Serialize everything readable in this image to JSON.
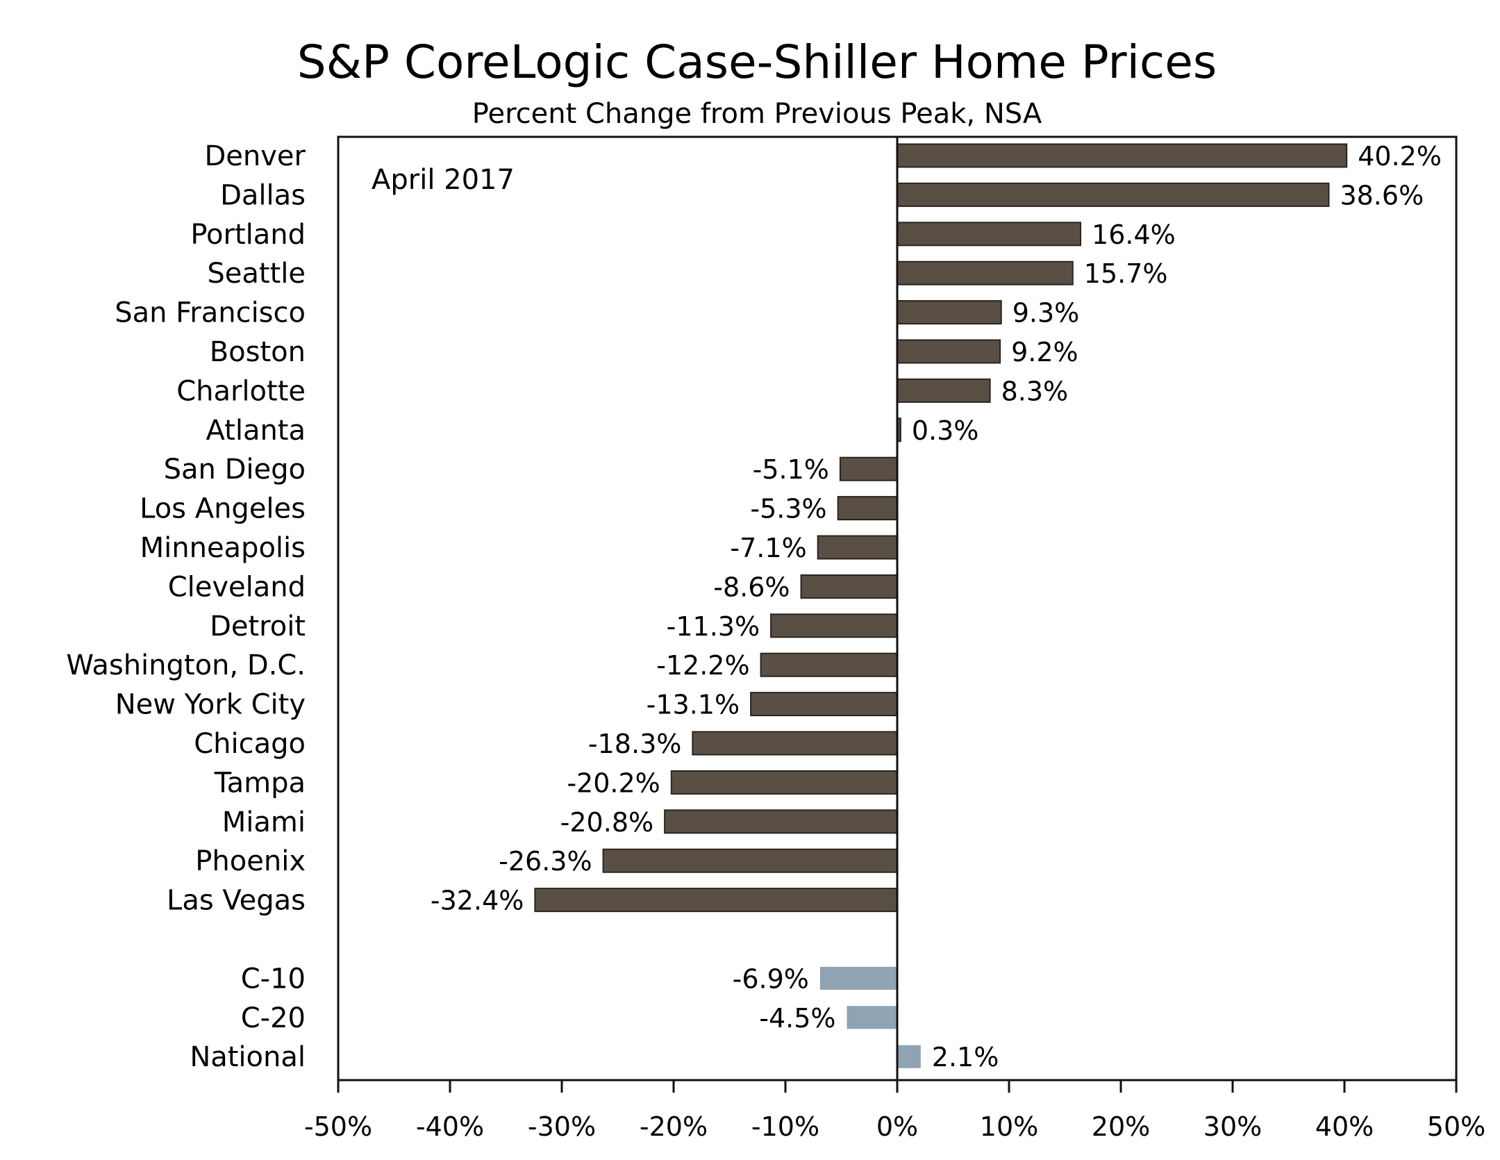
{
  "chart_data": {
    "type": "bar",
    "orientation": "horizontal",
    "title": "S&P CoreLogic Case-Shiller Home Prices",
    "subtitle": "Percent Change from Previous Peak, NSA",
    "annotation": "April 2017",
    "xlabel": "",
    "ylabel": "",
    "xlim": [
      -50,
      50
    ],
    "x_ticks": [
      "-50%",
      "-40%",
      "-30%",
      "-20%",
      "-10%",
      "0%",
      "10%",
      "20%",
      "30%",
      "40%",
      "50%"
    ],
    "x_tick_values": [
      -50,
      -40,
      -30,
      -20,
      -10,
      0,
      10,
      20,
      30,
      40,
      50
    ],
    "grid": false,
    "colors": {
      "city": "#594f44",
      "composite": "#8fa3b3",
      "axis": "#111111"
    },
    "series": [
      {
        "name": "Cities",
        "categories": [
          "Denver",
          "Dallas",
          "Portland",
          "Seattle",
          "San Francisco",
          "Boston",
          "Charlotte",
          "Atlanta",
          "San Diego",
          "Los Angeles",
          "Minneapolis",
          "Cleveland",
          "Detroit",
          "Washington, D.C.",
          "New York City",
          "Chicago",
          "Tampa",
          "Miami",
          "Phoenix",
          "Las Vegas"
        ],
        "values": [
          40.2,
          38.6,
          16.4,
          15.7,
          9.3,
          9.2,
          8.3,
          0.3,
          -5.1,
          -5.3,
          -7.1,
          -8.6,
          -11.3,
          -12.2,
          -13.1,
          -18.3,
          -20.2,
          -20.8,
          -26.3,
          -32.4
        ],
        "labels": [
          "40.2%",
          "38.6%",
          "16.4%",
          "15.7%",
          "9.3%",
          "9.2%",
          "8.3%",
          "0.3%",
          "-5.1%",
          "-5.3%",
          "-7.1%",
          "-8.6%",
          "-11.3%",
          "-12.2%",
          "-13.1%",
          "-18.3%",
          "-20.2%",
          "-20.8%",
          "-26.3%",
          "-32.4%"
        ]
      },
      {
        "name": "Composites",
        "categories": [
          "C-10",
          "C-20",
          "National"
        ],
        "values": [
          -6.9,
          -4.5,
          2.1
        ],
        "labels": [
          "-6.9%",
          "-4.5%",
          "2.1%"
        ]
      }
    ]
  }
}
